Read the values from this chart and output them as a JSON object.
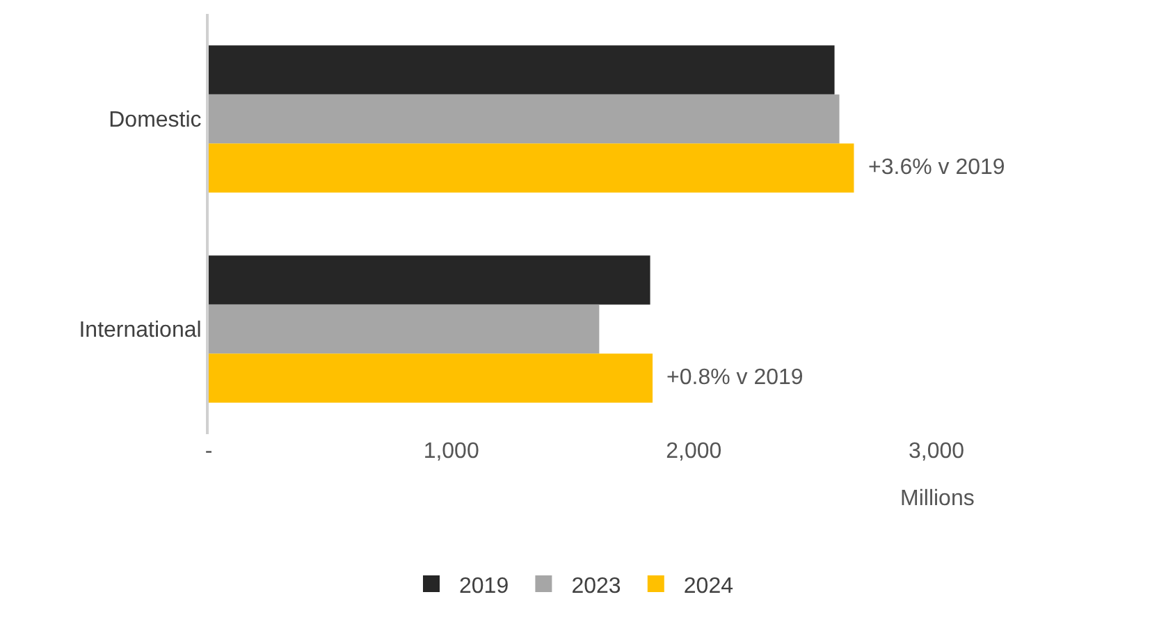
{
  "chart_data": {
    "type": "bar",
    "orientation": "horizontal",
    "categories": [
      "Domestic",
      "International"
    ],
    "series": [
      {
        "name": "2019",
        "color": "#262626",
        "values": [
          2580,
          1820
        ]
      },
      {
        "name": "2023",
        "color": "#a6a6a6",
        "values": [
          2600,
          1610
        ]
      },
      {
        "name": "2024",
        "color": "#ffc000",
        "values": [
          2660,
          1830
        ]
      }
    ],
    "xlim": [
      0,
      3000
    ],
    "xticks": [
      {
        "value": 0,
        "label": "-"
      },
      {
        "value": 1000,
        "label": "1,000"
      },
      {
        "value": 2000,
        "label": "2,000"
      },
      {
        "value": 3000,
        "label": "3,000"
      }
    ],
    "xlabel": "Millions",
    "legend": "bottom",
    "annotations": [
      "+3.6% v 2019",
      "+0.8% v 2019"
    ]
  }
}
